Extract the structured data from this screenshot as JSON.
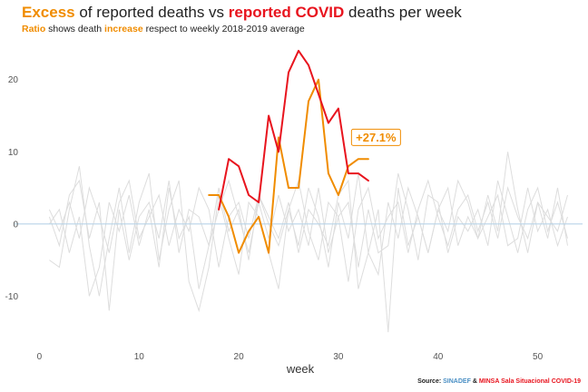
{
  "title": {
    "part1": "Excess",
    "part2": " of reported deaths vs ",
    "part3": "reported COVID",
    "part4": " deaths per week"
  },
  "subtitle": {
    "part1": "Ratio",
    "part2": " shows death ",
    "part3": "increase",
    "part4": " respect to weekly 2018-2019 average"
  },
  "source": {
    "label": "Source:",
    "sinadef": "SINADEF",
    "amp": "&",
    "minsa": "MINSA Sala Situacional COVID-19"
  },
  "colors": {
    "excess": "#f08c00",
    "covid": "#e8141e",
    "background_lines": "#dddddd",
    "zero_line": "#b8d4e8"
  },
  "chart_data": {
    "type": "line",
    "xlabel": "week",
    "ylabel": "",
    "xlim": [
      -2.5,
      54.5
    ],
    "ylim": [
      -17.5,
      25.5
    ],
    "xticks": [
      0,
      10,
      20,
      30,
      40,
      50
    ],
    "yticks": [
      -10,
      0,
      10,
      20
    ],
    "grid": false,
    "annotation": {
      "text": "+27.1%",
      "x": 33.5,
      "y": 12
    },
    "series": [
      {
        "role": "excess",
        "x": [
          17,
          18,
          19,
          20,
          21,
          22,
          23,
          24,
          25,
          26,
          27,
          28,
          29,
          30,
          31,
          32,
          33
        ],
        "values": [
          4,
          4,
          1,
          -4,
          -1,
          1,
          -4,
          12,
          5,
          5,
          17,
          20,
          7,
          4,
          8,
          9,
          9
        ]
      },
      {
        "role": "covid",
        "x": [
          18,
          19,
          20,
          21,
          22,
          23,
          24,
          25,
          26,
          27,
          28,
          29,
          30,
          31,
          32,
          33
        ],
        "values": [
          2,
          9,
          8,
          4,
          3,
          15,
          10,
          21,
          24,
          22,
          18,
          14,
          16,
          7,
          7,
          6
        ]
      }
    ],
    "background_series": [
      {
        "x": [
          1,
          2,
          3,
          4,
          5,
          6,
          7,
          8,
          9,
          10,
          11,
          12,
          13,
          14,
          15,
          16,
          17,
          18,
          19,
          20,
          21,
          22,
          23,
          24,
          25,
          26,
          27,
          28,
          29,
          30,
          31,
          32,
          33,
          34,
          35,
          36,
          37,
          38,
          39,
          40,
          41,
          42,
          43,
          44,
          45,
          46,
          47,
          48,
          49,
          50,
          51,
          52,
          53
        ],
        "values": [
          2,
          -1,
          3,
          -2,
          5,
          1,
          -4,
          3,
          6,
          -2,
          1,
          4,
          -3,
          2,
          -1,
          5,
          2,
          -6,
          1,
          3,
          -2,
          4,
          0,
          -3,
          2,
          6,
          -1,
          -5,
          3,
          1,
          -8,
          2,
          5,
          -2,
          1,
          3,
          -4,
          2,
          6,
          1,
          -3,
          2,
          4,
          -1,
          3,
          -2,
          5,
          1,
          -2,
          3,
          1,
          -1,
          4
        ]
      },
      {
        "x": [
          1,
          2,
          3,
          4,
          5,
          6,
          7,
          8,
          9,
          10,
          11,
          12,
          13,
          14,
          15,
          16,
          17,
          18,
          19,
          20,
          21,
          22,
          23,
          24,
          25,
          26,
          27,
          28,
          29,
          30,
          31,
          32,
          33,
          34,
          35,
          36,
          37,
          38,
          39,
          40,
          41,
          42,
          43,
          44,
          45,
          46,
          47,
          48,
          49,
          50,
          51,
          52,
          53
        ],
        "values": [
          -5,
          -6,
          2,
          8,
          -3,
          -10,
          -2,
          5,
          -4,
          3,
          7,
          -5,
          2,
          6,
          -8,
          -12,
          -6,
          4,
          -2,
          -7,
          3,
          1,
          -4,
          -9,
          2,
          -3,
          5,
          1,
          -6,
          3,
          -2,
          7,
          -4,
          2,
          -15,
          5,
          -3,
          1,
          -4,
          2,
          5,
          -3,
          1,
          -2,
          4,
          -1,
          10,
          2,
          -4,
          3,
          -2,
          5,
          -3
        ]
      },
      {
        "x": [
          1,
          2,
          3,
          4,
          5,
          6,
          7,
          8,
          9,
          10,
          11,
          12,
          13,
          14,
          15,
          16,
          17,
          18,
          19,
          20,
          21,
          22,
          23,
          24,
          25,
          26,
          27,
          28,
          29,
          30,
          31,
          32,
          33,
          34,
          35,
          36,
          37,
          38,
          39,
          40,
          41,
          42,
          43,
          44,
          45,
          46,
          47,
          48,
          49,
          50,
          51,
          52,
          53
        ],
        "values": [
          0,
          2,
          -4,
          1,
          -10,
          -6,
          3,
          -1,
          4,
          -3,
          2,
          -6,
          5,
          -2,
          1,
          -9,
          -3,
          2,
          6,
          1,
          -4,
          3,
          -2,
          4,
          -1,
          2,
          -3,
          5,
          -4,
          1,
          3,
          -6,
          2,
          -4,
          -3,
          7,
          2,
          -5,
          4,
          3,
          -4,
          1,
          -1,
          2,
          -3,
          6,
          1,
          -4,
          2,
          5,
          -1,
          3,
          -2
        ]
      },
      {
        "x": [
          1,
          2,
          3,
          4,
          5,
          6,
          7,
          8,
          9,
          10,
          11,
          12,
          13,
          14,
          15,
          16,
          17,
          18,
          19,
          20,
          21,
          22,
          23,
          24,
          25,
          26,
          27,
          28,
          29,
          30,
          31,
          32,
          33,
          34,
          35,
          36,
          37,
          38,
          39,
          40,
          41,
          42,
          43,
          44,
          45,
          46,
          47,
          48,
          49,
          50,
          51,
          52,
          53
        ],
        "values": [
          1,
          -3,
          4,
          6,
          -2,
          3,
          -12,
          2,
          -5,
          1,
          3,
          -2,
          6,
          -4,
          2,
          1,
          -3,
          5,
          -1,
          2,
          -5,
          4,
          1,
          -2,
          3,
          -4,
          2,
          0,
          -3,
          4,
          6,
          -9,
          -4,
          -7,
          3,
          -2,
          5,
          1,
          -4,
          2,
          -1,
          6,
          3,
          -2,
          1,
          4,
          -3,
          -2,
          5,
          -1,
          2,
          -3,
          1
        ]
      }
    ]
  }
}
